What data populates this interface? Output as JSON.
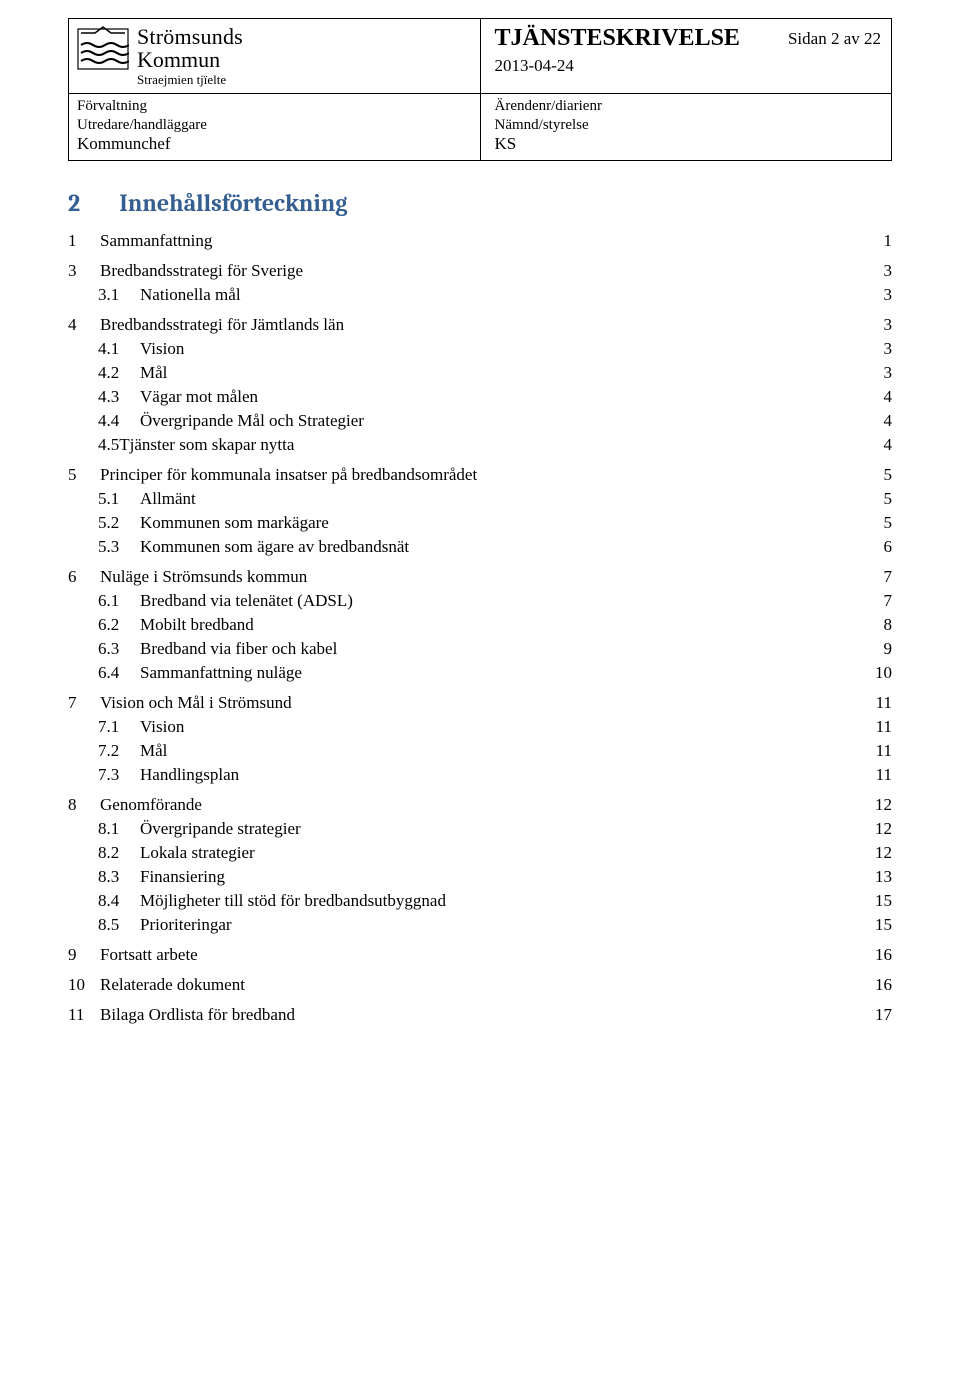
{
  "header": {
    "org_name": "Strömsunds",
    "org_sub": "Kommun",
    "org_tag": "Straejmien tjïelte",
    "doc_title": "TJÄNSTESKRIVELSE",
    "page_label": "Sidan 2 av 22",
    "doc_date": "2013-04-24",
    "left_meta_label": "Förvaltning",
    "right_meta_label": "Ärendenr/diarienr",
    "handler_label": "Utredare/handläggare",
    "handler_value": "Kommunchef",
    "board_label": "Nämnd/styrelse",
    "board_value": "KS"
  },
  "toc_title_num": "2",
  "toc_title_text": "Innehållsförteckning",
  "toc": [
    {
      "lvl": 1,
      "num": "1",
      "text": "Sammanfattning",
      "page": "1"
    },
    {
      "lvl": 1,
      "num": "3",
      "text": "Bredbandsstrategi för Sverige",
      "page": "3"
    },
    {
      "lvl": 2,
      "num": "3.1",
      "text": "Nationella mål",
      "page": "3"
    },
    {
      "lvl": 1,
      "num": "4",
      "text": "Bredbandsstrategi för Jämtlands län",
      "page": "3"
    },
    {
      "lvl": 2,
      "num": "4.1",
      "text": "Vision",
      "page": "3"
    },
    {
      "lvl": 2,
      "num": "4.2",
      "text": "Mål",
      "page": "3"
    },
    {
      "lvl": 2,
      "num": "4.3",
      "text": "Vägar mot målen",
      "page": "4"
    },
    {
      "lvl": 2,
      "num": "4.4",
      "text": "Övergripande Mål och Strategier",
      "page": "4"
    },
    {
      "lvl": 2,
      "num": "",
      "text": "4.5Tjänster som skapar nytta",
      "page": "4",
      "nonum": true
    },
    {
      "lvl": 1,
      "num": "5",
      "text": "Principer för kommunala insatser på bredbandsområdet",
      "page": "5"
    },
    {
      "lvl": 2,
      "num": "5.1",
      "text": "Allmänt",
      "page": "5"
    },
    {
      "lvl": 2,
      "num": "5.2",
      "text": "Kommunen som markägare",
      "page": "5"
    },
    {
      "lvl": 2,
      "num": "5.3",
      "text": "Kommunen som ägare av bredbandsnät",
      "page": "6"
    },
    {
      "lvl": 1,
      "num": "6",
      "text": "Nuläge i Strömsunds kommun",
      "page": "7"
    },
    {
      "lvl": 2,
      "num": "6.1",
      "text": "Bredband via telenätet (ADSL)",
      "page": "7"
    },
    {
      "lvl": 2,
      "num": "6.2",
      "text": "Mobilt bredband",
      "page": "8"
    },
    {
      "lvl": 2,
      "num": "6.3",
      "text": "Bredband via fiber och kabel",
      "page": "9"
    },
    {
      "lvl": 2,
      "num": "6.4",
      "text": "Sammanfattning nuläge",
      "page": "10"
    },
    {
      "lvl": 1,
      "num": "7",
      "text": "Vision och Mål i Strömsund",
      "page": "11"
    },
    {
      "lvl": 2,
      "num": "7.1",
      "text": "Vision",
      "page": "11"
    },
    {
      "lvl": 2,
      "num": "7.2",
      "text": "Mål",
      "page": "11"
    },
    {
      "lvl": 2,
      "num": "7.3",
      "text": "Handlingsplan",
      "page": "11"
    },
    {
      "lvl": 1,
      "num": "8",
      "text": "Genomförande",
      "page": "12"
    },
    {
      "lvl": 2,
      "num": "8.1",
      "text": "Övergripande strategier",
      "page": "12"
    },
    {
      "lvl": 2,
      "num": "8.2",
      "text": "Lokala strategier",
      "page": "12"
    },
    {
      "lvl": 2,
      "num": "8.3",
      "text": "Finansiering",
      "page": "13"
    },
    {
      "lvl": 2,
      "num": "8.4",
      "text": "Möjligheter till stöd för bredbandsutbyggnad",
      "page": "15"
    },
    {
      "lvl": 2,
      "num": "8.5",
      "text": "Prioriteringar",
      "page": "15"
    },
    {
      "lvl": 1,
      "num": "9",
      "text": "Fortsatt arbete",
      "page": "16"
    },
    {
      "lvl": 1,
      "num": "10",
      "text": "Relaterade dokument",
      "page": "16"
    },
    {
      "lvl": 1,
      "num": "11",
      "text": "Bilaga Ordlista för bredband",
      "page": "17"
    }
  ],
  "colors": {
    "heading": "#365f91",
    "text": "#000000",
    "border": "#000000",
    "background": "#ffffff"
  }
}
